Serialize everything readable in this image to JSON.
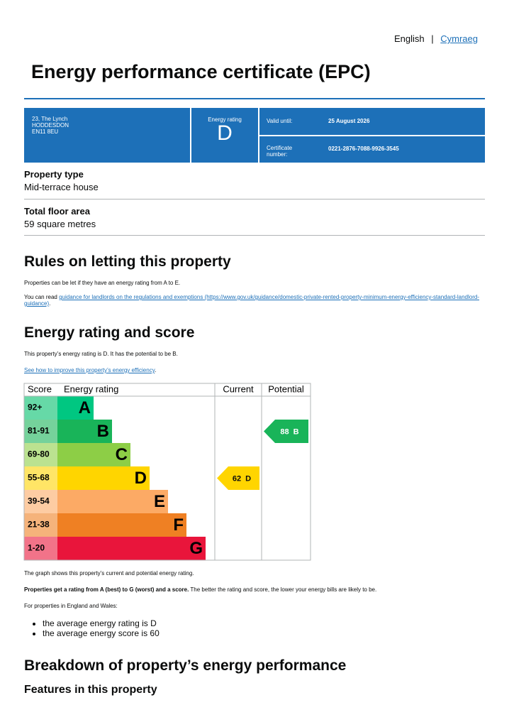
{
  "header": {
    "lang_en": "English",
    "separator": "|",
    "lang_cy": "Cymraeg",
    "title": "Energy performance certificate (EPC)"
  },
  "summary": {
    "address": [
      "23, The Lynch",
      "HODDESDON",
      "EN11 8EU"
    ],
    "rating_label": "Energy rating",
    "rating": "D",
    "valid_label": "Valid until:",
    "valid_date": "25 August 2026",
    "cert_label": "Certificate number:",
    "cert_number": "0221-2876-7088-9926-3545"
  },
  "property": [
    {
      "label": "Property type",
      "value": "Mid-terrace house"
    },
    {
      "label": "Total floor area",
      "value": "59 square metres"
    }
  ],
  "letting": {
    "heading": "Rules on letting this property",
    "p1": "Properties can be let if they have an energy rating from A to E.",
    "p2_before": "You can read ",
    "link": "guidance for landlords on the regulations and exemptions",
    "url": "(https://www.gov.uk/guidance/domestic-private-rented-property-minimum-energy-efficiency-standard-landlord-guidance)",
    "p2_after": "."
  },
  "rating_section": {
    "heading": "Energy rating and score",
    "p1": "This property’s energy rating is D. It has the potential to be B.",
    "link": "See how to improve this property’s energy efficiency",
    "link_after": "."
  },
  "epc_chart": {
    "headers": [
      "Score",
      "Energy rating",
      "Current",
      "Potential"
    ],
    "bands": [
      {
        "range": "92+",
        "letter": "A"
      },
      {
        "range": "81-91",
        "letter": "B"
      },
      {
        "range": "69-80",
        "letter": "C"
      },
      {
        "range": "55-68",
        "letter": "D"
      },
      {
        "range": "39-54",
        "letter": "E"
      },
      {
        "range": "21-38",
        "letter": "F"
      },
      {
        "range": "1-20",
        "letter": "G"
      }
    ],
    "current": {
      "score": 62,
      "letter": "D"
    },
    "potential": {
      "score": 88,
      "letter": "B"
    }
  },
  "after_chart": {
    "p1": "The graph shows this property’s current and potential energy rating.",
    "p2_bold": "Properties get a rating from A (best) to G (worst) and a score.",
    "p2_rest": " The better the rating and score, the lower your energy bills are likely to be.",
    "p3": "For properties in England and Wales:",
    "bullets": [
      "the average energy rating is D",
      "the average energy score is 60"
    ]
  },
  "breakdown": {
    "heading": "Breakdown of property’s energy performance",
    "subheading": "Features in this property"
  }
}
